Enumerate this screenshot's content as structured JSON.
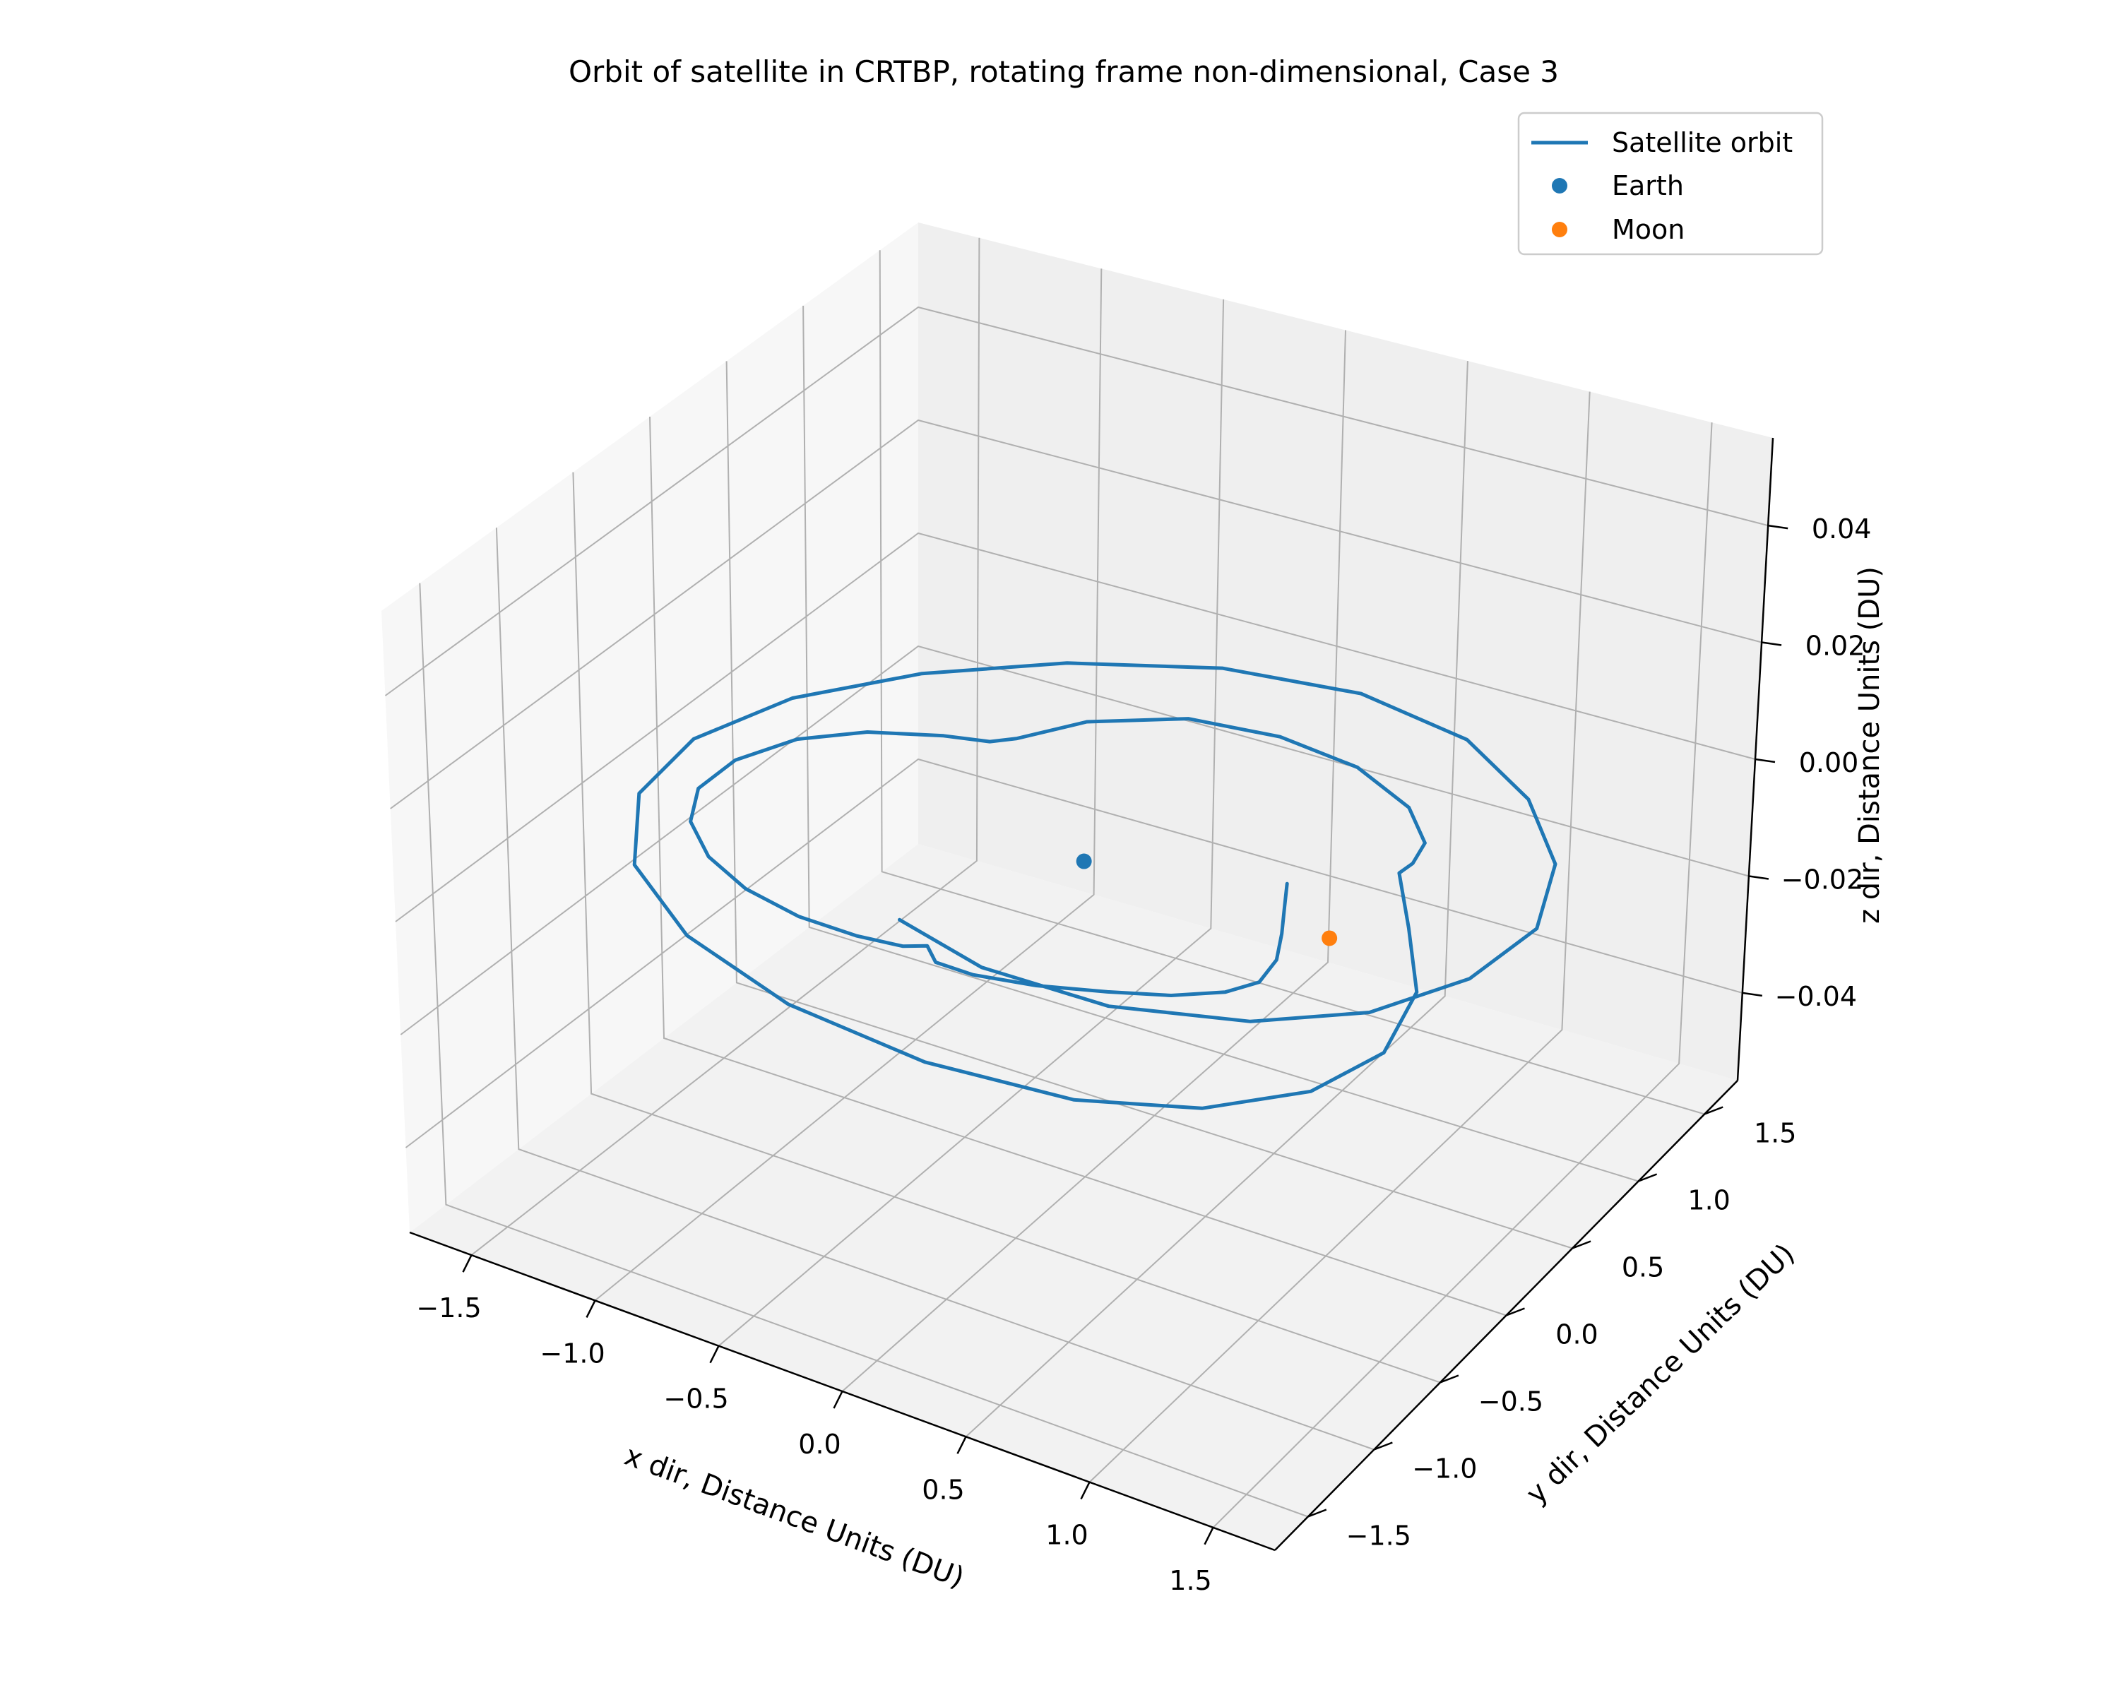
{
  "chart_data": {
    "type": "line",
    "projection": "3d",
    "title": "Orbit of satellite in CRTBP, rotating frame non-dimensional, Case 3",
    "xlabel": "x dir, Distance Units (DU)",
    "ylabel": "y dir, Distance Units (DU)",
    "zlabel": "z dir, Distance Units (DU)",
    "xlim": [
      -1.75,
      1.75
    ],
    "ylim": [
      -1.75,
      1.75
    ],
    "zlim": [
      -0.055,
      0.055
    ],
    "grid": true,
    "legend_position": "top-right",
    "x_ticks": [
      -1.5,
      -1.0,
      -0.5,
      0.0,
      0.5,
      1.0,
      1.5
    ],
    "y_ticks": [
      -1.5,
      -1.0,
      -0.5,
      0.0,
      0.5,
      1.0,
      1.5
    ],
    "z_ticks": [
      -0.04,
      -0.02,
      0.0,
      0.02,
      0.04
    ],
    "x_tick_labels": [
      "−1.5",
      "−1.0",
      "−0.5",
      "0.0",
      "0.5",
      "1.0",
      "1.5"
    ],
    "y_tick_labels": [
      "−1.5",
      "−1.0",
      "−0.5",
      "0.0",
      "0.5",
      "1.0",
      "1.5"
    ],
    "z_tick_labels": [
      "−0.04",
      "−0.02",
      "0.00",
      "0.02",
      "0.04"
    ],
    "series": [
      {
        "name": "Satellite orbit",
        "kind": "line",
        "color": "#1f77b4",
        "points": [
          [
            0.68,
            0.24,
            0
          ],
          [
            0.75,
            0.1,
            0
          ],
          [
            0.83,
            -0.06,
            0
          ],
          [
            0.9,
            -0.22,
            0
          ],
          [
            0.92,
            -0.38,
            0
          ],
          [
            0.85,
            -0.5,
            0
          ],
          [
            0.7,
            -0.62,
            0
          ],
          [
            0.5,
            -0.72,
            0
          ],
          [
            0.27,
            -0.82,
            0
          ],
          [
            0.05,
            -0.88,
            0
          ],
          [
            -0.1,
            -0.88,
            0
          ],
          [
            -0.18,
            -0.8,
            0
          ],
          [
            -0.25,
            -0.85,
            0
          ],
          [
            -0.42,
            -0.88,
            0
          ],
          [
            -0.65,
            -0.88,
            0
          ],
          [
            -0.9,
            -0.82,
            0
          ],
          [
            -1.12,
            -0.7,
            0
          ],
          [
            -1.3,
            -0.52,
            0
          ],
          [
            -1.4,
            -0.3,
            0
          ],
          [
            -1.4,
            -0.05,
            0
          ],
          [
            -1.3,
            0.2,
            0
          ],
          [
            -1.12,
            0.38,
            0
          ],
          [
            -0.88,
            0.5,
            0
          ],
          [
            -0.72,
            0.55,
            0
          ],
          [
            -0.65,
            0.62,
            0
          ],
          [
            -0.5,
            0.85,
            0
          ],
          [
            -0.2,
            1.05,
            0
          ],
          [
            0.15,
            1.1,
            0
          ],
          [
            0.5,
            1.05,
            0
          ],
          [
            0.8,
            0.9,
            0
          ],
          [
            0.97,
            0.72,
            0
          ],
          [
            1.0,
            0.58,
            0
          ],
          [
            0.99,
            0.5,
            0
          ],
          [
            1.2,
            0.2,
            0
          ],
          [
            1.43,
            -0.15,
            0
          ],
          [
            1.52,
            -0.55,
            0
          ],
          [
            1.42,
            -0.9,
            0
          ],
          [
            1.15,
            -1.2,
            0
          ],
          [
            0.75,
            -1.4,
            0
          ],
          [
            0.2,
            -1.48,
            0
          ],
          [
            -0.38,
            -1.42,
            0
          ],
          [
            -0.9,
            -1.22,
            0
          ],
          [
            -1.3,
            -0.9,
            0
          ],
          [
            -1.55,
            -0.45,
            0
          ],
          [
            -1.6,
            0.0,
            0
          ],
          [
            -1.47,
            0.45,
            0
          ],
          [
            -1.18,
            0.85,
            0
          ],
          [
            -0.78,
            1.18,
            0
          ],
          [
            -0.28,
            1.42,
            0
          ],
          [
            0.25,
            1.5,
            0
          ],
          [
            0.75,
            1.4,
            0
          ],
          [
            1.15,
            1.15,
            0
          ],
          [
            1.45,
            0.82,
            0
          ],
          [
            1.6,
            0.42,
            0
          ],
          [
            1.55,
            0.02,
            0
          ],
          [
            1.35,
            -0.35,
            0
          ],
          [
            1.02,
            -0.62,
            0
          ],
          [
            0.55,
            -0.8,
            0
          ],
          [
            0.05,
            -0.82,
            0
          ],
          [
            -0.35,
            -0.7,
            0
          ]
        ]
      },
      {
        "name": "Earth",
        "kind": "scatter",
        "color": "#1f77b4",
        "points": [
          [
            -0.01,
            0.0,
            0.0
          ]
        ]
      },
      {
        "name": "Moon",
        "kind": "scatter",
        "color": "#ff7f0e",
        "points": [
          [
            0.99,
            0.0,
            0.0
          ]
        ]
      }
    ]
  }
}
